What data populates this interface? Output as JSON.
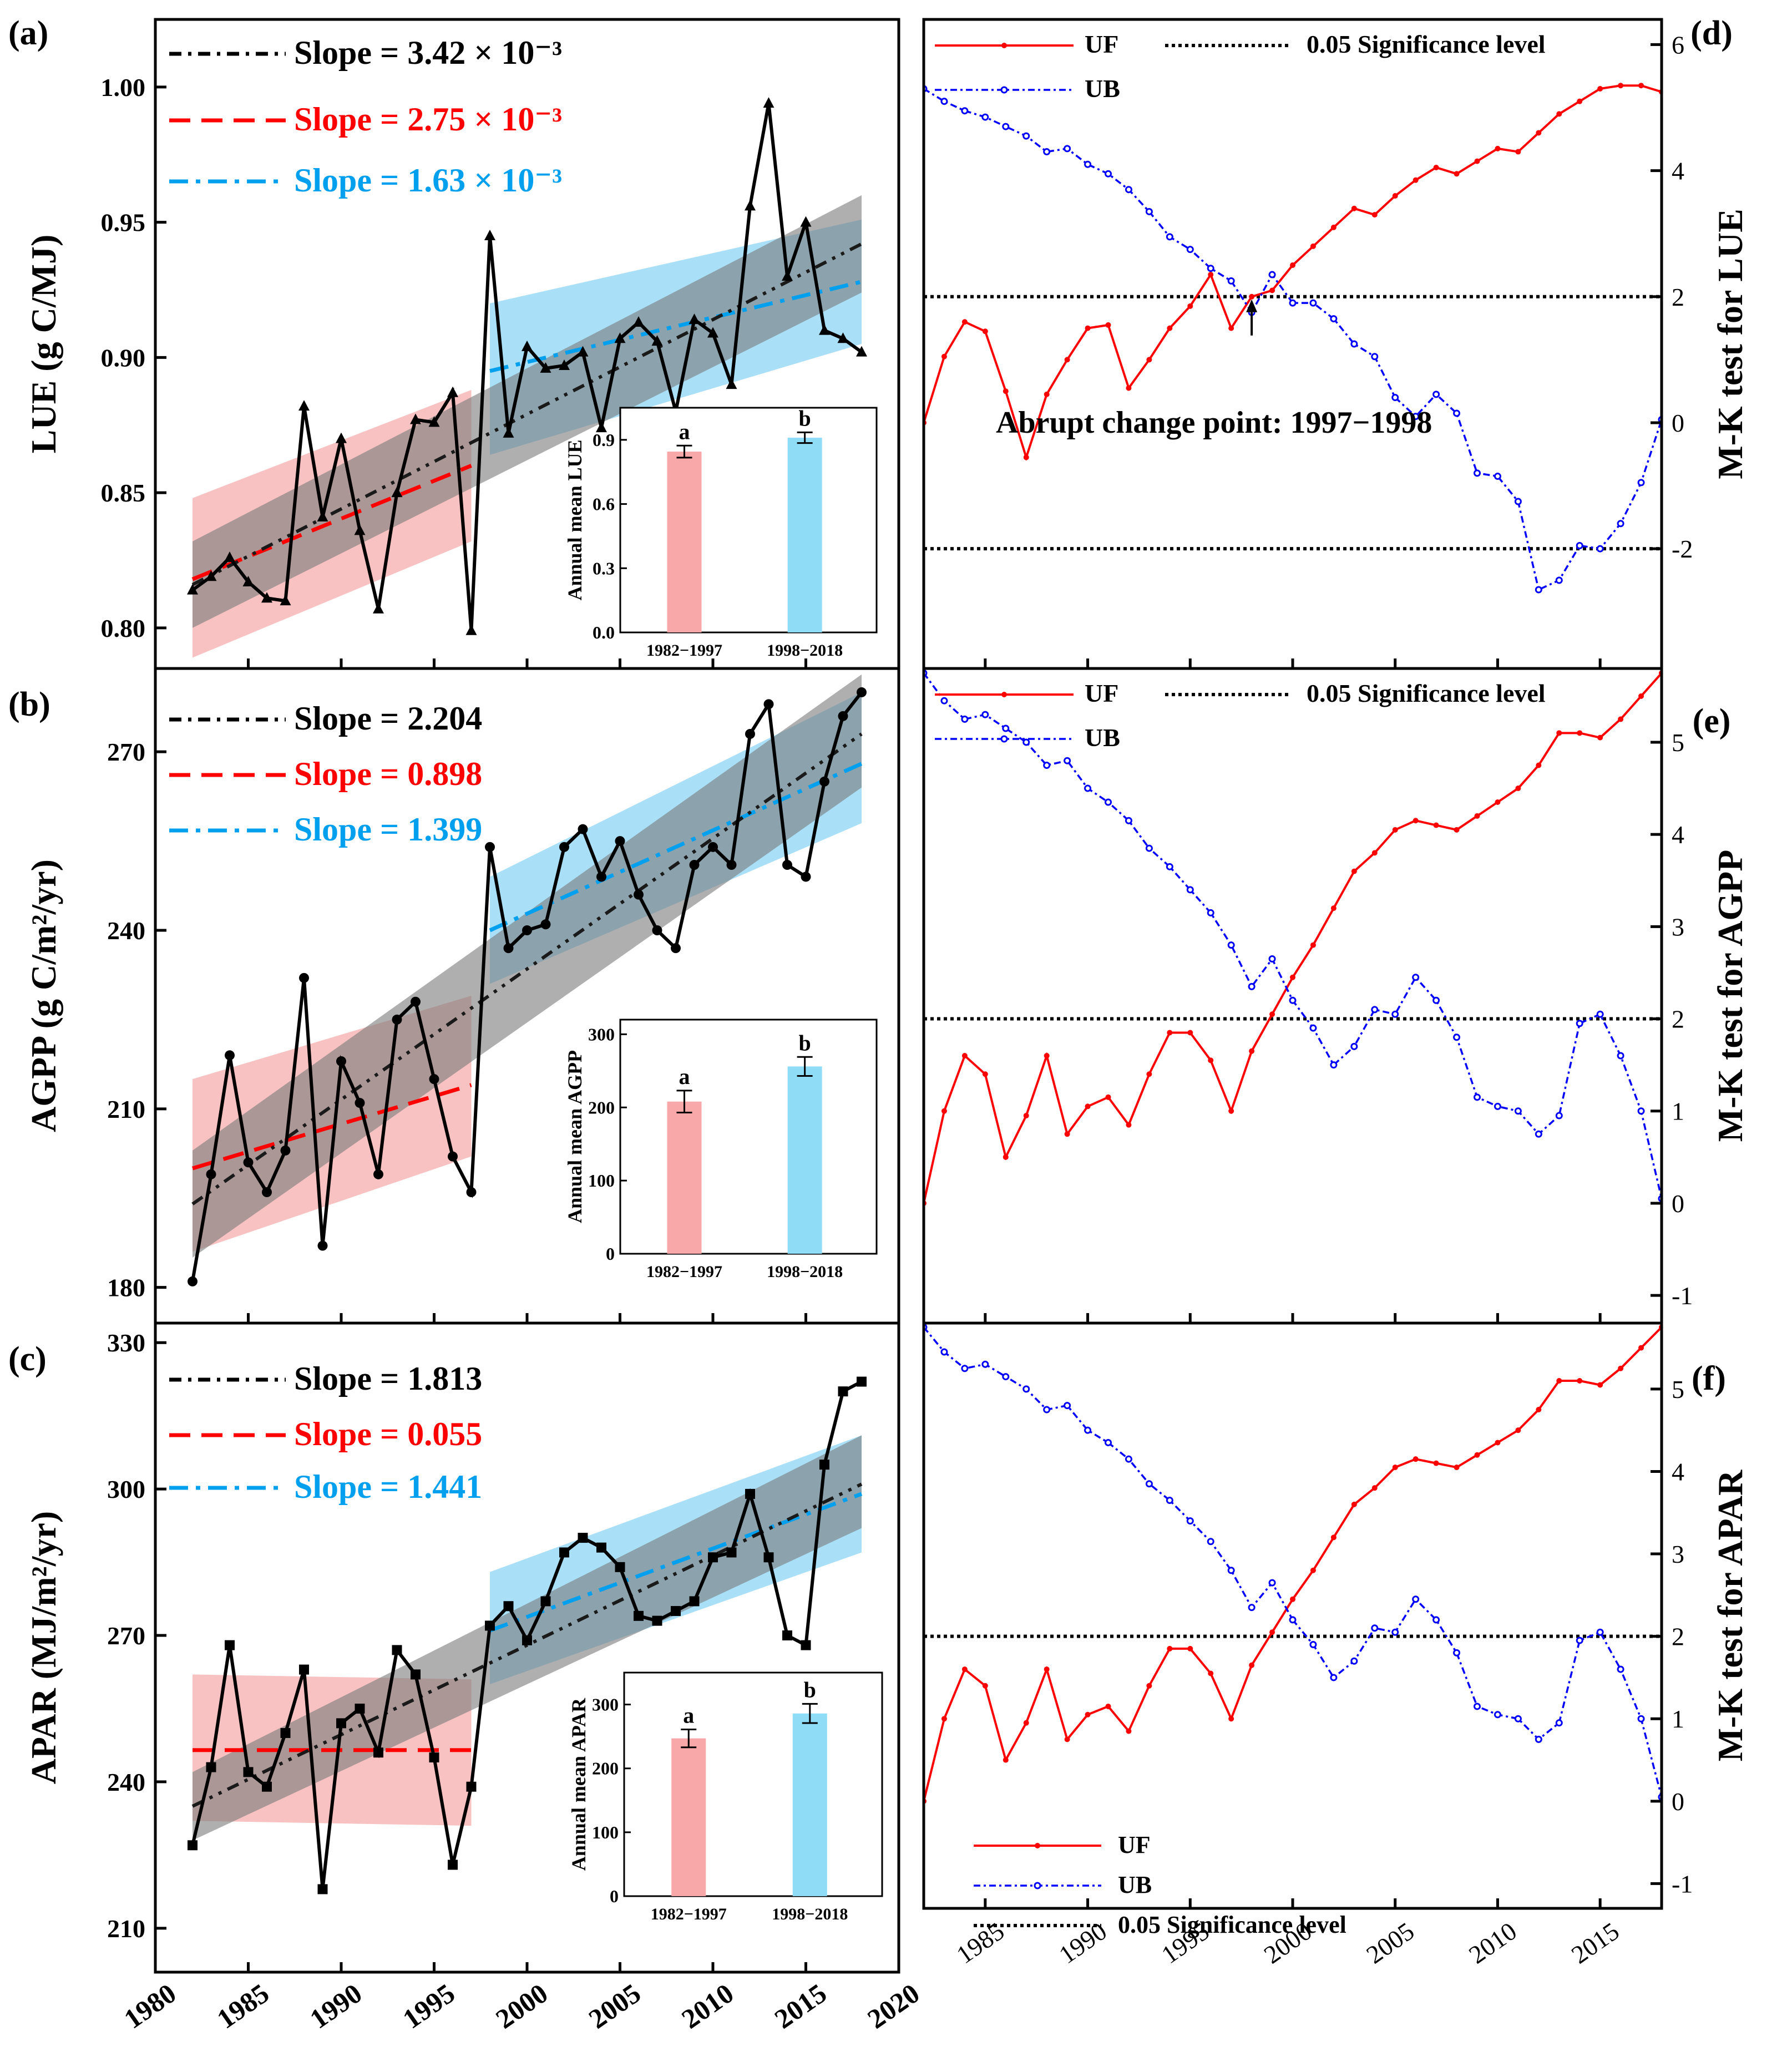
{
  "colors": {
    "black": "#000000",
    "red": "#ff0000",
    "blue": "#0000ff",
    "light_blue": "#00a0ee",
    "pink_band": "#f49a9a",
    "blue_band": "#62c5f0",
    "gray_band": "#7a7a7a",
    "pink_bar": "#f8a8a8",
    "blue_bar": "#8edcf6"
  },
  "common": {
    "x_ticks": [
      "1980",
      "1985",
      "1990",
      "1995",
      "2000",
      "2005",
      "2010",
      "2015",
      "2020"
    ],
    "mk_x_ticks": [
      "1985",
      "1990",
      "1995",
      "2000",
      "2005",
      "2010",
      "2015"
    ],
    "inset_categories": [
      "1982−1997",
      "1998−2018"
    ]
  },
  "chart_data": [
    {
      "id": "a",
      "type": "line",
      "panel_label": "(a)",
      "ylabel": "LUE (g C/MJ)",
      "xlim": [
        1980,
        2020
      ],
      "ylim": [
        0.785,
        1.025
      ],
      "y_ticks": [
        0.8,
        0.85,
        0.9,
        0.95,
        1.0
      ],
      "y_tick_labels": [
        "0.80",
        "0.85",
        "0.90",
        "0.95",
        "1.00"
      ],
      "legend": [
        "Slope = 3.42 × 10⁻³",
        "Slope = 2.75 × 10⁻³",
        "Slope = 1.63 × 10⁻³"
      ],
      "marker": "triangle",
      "x": [
        1982,
        1983,
        1984,
        1985,
        1986,
        1987,
        1988,
        1989,
        1990,
        1991,
        1992,
        1993,
        1994,
        1995,
        1996,
        1997,
        1998,
        1999,
        2000,
        2001,
        2002,
        2003,
        2004,
        2005,
        2006,
        2007,
        2008,
        2009,
        2010,
        2011,
        2012,
        2013,
        2014,
        2015,
        2016,
        2017,
        2018
      ],
      "y": [
        0.814,
        0.819,
        0.826,
        0.817,
        0.811,
        0.81,
        0.882,
        0.841,
        0.87,
        0.836,
        0.807,
        0.85,
        0.877,
        0.876,
        0.887,
        0.799,
        0.945,
        0.872,
        0.904,
        0.896,
        0.897,
        0.902,
        0.874,
        0.907,
        0.913,
        0.906,
        0.88,
        0.914,
        0.909,
        0.89,
        0.956,
        0.994,
        0.93,
        0.95,
        0.91,
        0.907,
        0.902
      ],
      "trend_all": [
        0.816,
        0.942
      ],
      "trend_p1": [
        0.818,
        0.86
      ],
      "trend_p2": [
        0.895,
        0.928
      ],
      "band_all": [
        [
          0.8,
          0.832
        ],
        [
          0.924,
          0.96
        ]
      ],
      "band_p1": [
        [
          0.789,
          0.848
        ],
        [
          0.832,
          0.888
        ]
      ],
      "band_p2": [
        [
          0.864,
          0.92
        ],
        [
          0.905,
          0.951
        ]
      ],
      "inset": {
        "ylabel": "Annual mean LUE",
        "ylim": [
          0,
          1.05
        ],
        "y_ticks": [
          0,
          0.3,
          0.6,
          0.9
        ],
        "y_tick_labels": [
          "0.0",
          "0.3",
          "0.6",
          "0.9"
        ],
        "values": [
          0.845,
          0.91
        ],
        "errors": [
          0.028,
          0.025
        ],
        "letters": [
          "a",
          "b"
        ]
      }
    },
    {
      "id": "b",
      "type": "line",
      "panel_label": "(b)",
      "ylabel": "AGPP (g C/m²/yr)",
      "xlim": [
        1980,
        2020
      ],
      "ylim": [
        174,
        284
      ],
      "y_ticks": [
        180,
        210,
        240,
        270
      ],
      "y_tick_labels": [
        "180",
        "210",
        "240",
        "270"
      ],
      "legend": [
        "Slope = 2.204",
        "Slope = 0.898",
        "Slope = 1.399"
      ],
      "marker": "circle",
      "x": [
        1982,
        1983,
        1984,
        1985,
        1986,
        1987,
        1988,
        1989,
        1990,
        1991,
        1992,
        1993,
        1994,
        1995,
        1996,
        1997,
        1998,
        1999,
        2000,
        2001,
        2002,
        2003,
        2004,
        2005,
        2006,
        2007,
        2008,
        2009,
        2010,
        2011,
        2012,
        2013,
        2014,
        2015,
        2016,
        2017,
        2018
      ],
      "y": [
        181,
        199,
        219,
        201,
        196,
        203,
        232,
        187,
        218,
        211,
        199,
        225,
        228,
        215,
        202,
        196,
        254,
        237,
        240,
        241,
        254,
        257,
        249,
        255,
        246,
        240,
        237,
        251,
        254,
        251,
        273,
        278,
        251,
        249,
        265,
        276,
        280
      ],
      "trend_all": [
        194,
        273
      ],
      "trend_p1": [
        200,
        214
      ],
      "trend_p2": [
        240,
        268
      ],
      "band_all": [
        [
          185,
          203
        ],
        [
          264,
          283
        ]
      ],
      "band_p1": [
        [
          186,
          215
        ],
        [
          202,
          229
        ]
      ],
      "band_p2": [
        [
          231,
          249
        ],
        [
          258,
          280
        ]
      ],
      "inset": {
        "ylabel": "Annual mean AGPP",
        "ylim": [
          0,
          320
        ],
        "y_ticks": [
          0,
          100,
          200,
          300
        ],
        "y_tick_labels": [
          "0",
          "100",
          "200",
          "300"
        ],
        "values": [
          208,
          256
        ],
        "errors": [
          15,
          13
        ],
        "letters": [
          "a",
          "b"
        ]
      }
    },
    {
      "id": "c",
      "type": "line",
      "panel_label": "(c)",
      "ylabel": "APAR (MJ/m²/yr)",
      "xlim": [
        1980,
        2020
      ],
      "ylim": [
        201,
        334
      ],
      "y_ticks": [
        210,
        240,
        270,
        300,
        330
      ],
      "y_tick_labels": [
        "210",
        "240",
        "270",
        "300",
        "330"
      ],
      "legend": [
        "Slope = 1.813",
        "Slope = 0.055",
        "Slope = 1.441"
      ],
      "marker": "square",
      "x": [
        1982,
        1983,
        1984,
        1985,
        1986,
        1987,
        1988,
        1989,
        1990,
        1991,
        1992,
        1993,
        1994,
        1995,
        1996,
        1997,
        1998,
        1999,
        2000,
        2001,
        2002,
        2003,
        2004,
        2005,
        2006,
        2007,
        2008,
        2009,
        2010,
        2011,
        2012,
        2013,
        2014,
        2015,
        2016,
        2017,
        2018
      ],
      "y": [
        227,
        243,
        268,
        242,
        239,
        250,
        263,
        218,
        252,
        255,
        246,
        267,
        262,
        245,
        223,
        239,
        272,
        276,
        269,
        277,
        287,
        290,
        288,
        284,
        274,
        273,
        275,
        277,
        286,
        287,
        299,
        286,
        270,
        268,
        305,
        320,
        322
      ],
      "trend_all": [
        235,
        301
      ],
      "trend_p1": [
        246.5,
        246.5
      ],
      "trend_p2": [
        271,
        299
      ],
      "band_all": [
        [
          228,
          242
        ],
        [
          292,
          311
        ]
      ],
      "band_p1": [
        [
          232,
          262
        ],
        [
          231,
          261
        ]
      ],
      "band_p2": [
        [
          260,
          283
        ],
        [
          287,
          311
        ]
      ],
      "inset": {
        "ylabel": "Annual mean APAR",
        "ylim": [
          0,
          350
        ],
        "y_ticks": [
          0,
          100,
          200,
          300
        ],
        "y_tick_labels": [
          "0",
          "100",
          "200",
          "300"
        ],
        "values": [
          247,
          286
        ],
        "errors": [
          14,
          15
        ],
        "letters": [
          "a",
          "b"
        ]
      }
    },
    {
      "id": "d",
      "type": "line",
      "panel_label": "(d)",
      "ylabel": "M-K test for LUE",
      "xlim": [
        1982,
        2018
      ],
      "ylim": [
        -3.9,
        6.4
      ],
      "y_ticks": [
        -2,
        0,
        2,
        4,
        6
      ],
      "y_tick_labels": [
        "-2",
        "0",
        "2",
        "4",
        "6"
      ],
      "sig_level": [
        2,
        -2
      ],
      "legend": [
        "UF",
        "UB",
        "0.05 Significance level"
      ],
      "annotation": "Abrupt change point: 1997−1998",
      "x": [
        1982,
        1983,
        1984,
        1985,
        1986,
        1987,
        1988,
        1989,
        1990,
        1991,
        1992,
        1993,
        1994,
        1995,
        1996,
        1997,
        1998,
        1999,
        2000,
        2001,
        2002,
        2003,
        2004,
        2005,
        2006,
        2007,
        2008,
        2009,
        2010,
        2011,
        2012,
        2013,
        2014,
        2015,
        2016,
        2017,
        2018
      ],
      "UF": [
        0,
        1.05,
        1.6,
        1.45,
        0.5,
        -0.55,
        0.45,
        1.0,
        1.5,
        1.55,
        0.55,
        1.0,
        1.5,
        1.85,
        2.35,
        1.5,
        2.0,
        2.1,
        2.5,
        2.8,
        3.1,
        3.4,
        3.3,
        3.6,
        3.85,
        4.05,
        3.95,
        4.15,
        4.35,
        4.3,
        4.6,
        4.9,
        5.1,
        5.3,
        5.35,
        5.35,
        5.25
      ],
      "UB": [
        5.3,
        5.1,
        4.95,
        4.85,
        4.7,
        4.55,
        4.3,
        4.35,
        4.1,
        3.95,
        3.7,
        3.35,
        2.95,
        2.75,
        2.45,
        2.25,
        1.75,
        2.35,
        1.9,
        1.9,
        1.65,
        1.25,
        1.05,
        0.4,
        0.1,
        0.45,
        0.15,
        -0.8,
        -0.85,
        -1.25,
        -2.65,
        -2.5,
        -1.95,
        -2.0,
        -1.6,
        -0.95,
        0.05
      ]
    },
    {
      "id": "e",
      "type": "line",
      "panel_label": "(e)",
      "ylabel": "M-K test for AGPP",
      "xlim": [
        1982,
        2018
      ],
      "ylim": [
        -1.3,
        5.8
      ],
      "y_ticks": [
        -1,
        0,
        1,
        2,
        3,
        4,
        5
      ],
      "y_tick_labels": [
        "-1",
        "0",
        "1",
        "2",
        "3",
        "4",
        "5"
      ],
      "sig_level": [
        2
      ],
      "legend": [
        "UF",
        "UB",
        "0.05 Significance level"
      ],
      "x": [
        1982,
        1983,
        1984,
        1985,
        1986,
        1987,
        1988,
        1989,
        1990,
        1991,
        1992,
        1993,
        1994,
        1995,
        1996,
        1997,
        1998,
        1999,
        2000,
        2001,
        2002,
        2003,
        2004,
        2005,
        2006,
        2007,
        2008,
        2009,
        2010,
        2011,
        2012,
        2013,
        2014,
        2015,
        2016,
        2017,
        2018
      ],
      "UF": [
        0,
        1.0,
        1.6,
        1.4,
        0.5,
        0.95,
        1.6,
        0.75,
        1.05,
        1.15,
        0.85,
        1.4,
        1.85,
        1.85,
        1.55,
        1.0,
        1.65,
        2.05,
        2.45,
        2.8,
        3.2,
        3.6,
        3.8,
        4.05,
        4.15,
        4.1,
        4.05,
        4.2,
        4.35,
        4.5,
        4.75,
        5.1,
        5.1,
        5.05,
        5.25,
        5.5,
        5.75
      ],
      "UB": [
        5.75,
        5.45,
        5.25,
        5.3,
        5.15,
        5.0,
        4.75,
        4.8,
        4.5,
        4.35,
        4.15,
        3.85,
        3.65,
        3.4,
        3.15,
        2.8,
        2.35,
        2.65,
        2.2,
        1.9,
        1.5,
        1.7,
        2.1,
        2.05,
        2.45,
        2.2,
        1.8,
        1.15,
        1.05,
        1.0,
        0.75,
        0.95,
        1.95,
        2.05,
        1.6,
        1.0,
        0.05
      ]
    },
    {
      "id": "f",
      "type": "line",
      "panel_label": "(f)",
      "ylabel": "M-K test for APAR",
      "xlim": [
        1982,
        2018
      ],
      "ylim": [
        -1.3,
        5.8
      ],
      "y_ticks": [
        -1,
        0,
        1,
        2,
        3,
        4,
        5
      ],
      "y_tick_labels": [
        "-1",
        "0",
        "1",
        "2",
        "3",
        "4",
        "5"
      ],
      "sig_level": [
        2
      ],
      "legend": [
        "UF",
        "UB",
        "0.05 Significance level"
      ],
      "x": [
        1982,
        1983,
        1984,
        1985,
        1986,
        1987,
        1988,
        1989,
        1990,
        1991,
        1992,
        1993,
        1994,
        1995,
        1996,
        1997,
        1998,
        1999,
        2000,
        2001,
        2002,
        2003,
        2004,
        2005,
        2006,
        2007,
        2008,
        2009,
        2010,
        2011,
        2012,
        2013,
        2014,
        2015,
        2016,
        2017,
        2018
      ],
      "UF": [
        0,
        1.0,
        1.6,
        1.4,
        0.5,
        0.95,
        1.6,
        0.75,
        1.05,
        1.15,
        0.85,
        1.4,
        1.85,
        1.85,
        1.55,
        1.0,
        1.65,
        2.05,
        2.45,
        2.8,
        3.2,
        3.6,
        3.8,
        4.05,
        4.15,
        4.1,
        4.05,
        4.2,
        4.35,
        4.5,
        4.75,
        5.1,
        5.1,
        5.05,
        5.25,
        5.5,
        5.75
      ],
      "UB": [
        5.75,
        5.45,
        5.25,
        5.3,
        5.15,
        5.0,
        4.75,
        4.8,
        4.5,
        4.35,
        4.15,
        3.85,
        3.65,
        3.4,
        3.15,
        2.8,
        2.35,
        2.65,
        2.2,
        1.9,
        1.5,
        1.7,
        2.1,
        2.05,
        2.45,
        2.2,
        1.8,
        1.15,
        1.05,
        1.0,
        0.75,
        0.95,
        1.95,
        2.05,
        1.6,
        1.0,
        0.05
      ]
    }
  ]
}
